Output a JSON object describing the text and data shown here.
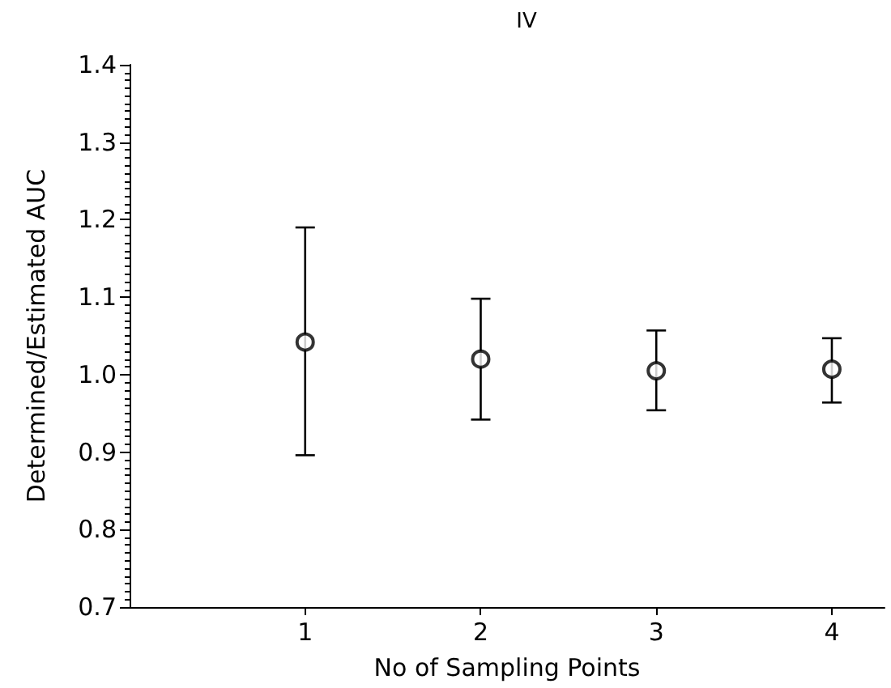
{
  "chart_data": {
    "type": "scatter",
    "title": "IV",
    "xlabel": "No of Sampling Points",
    "ylabel": "Determined/Estimated AUC",
    "x": [
      1,
      2,
      3,
      4
    ],
    "values": [
      1.042,
      1.02,
      1.005,
      1.007
    ],
    "errors": [
      [
        0.896,
        1.19
      ],
      [
        0.942,
        1.098
      ],
      [
        0.954,
        1.057
      ],
      [
        0.964,
        1.047
      ]
    ],
    "color": "#000000",
    "marker": "circle",
    "xlim": [
      0,
      4.3
    ],
    "xticks": [
      1,
      2,
      3,
      4
    ],
    "ylim": [
      0.7,
      1.4
    ],
    "yticks": [
      0.7,
      0.8,
      0.9,
      {
        "value": 1,
        "label": "1.0"
      },
      1.1,
      1.2,
      1.3,
      1.4
    ],
    "grid": false
  }
}
